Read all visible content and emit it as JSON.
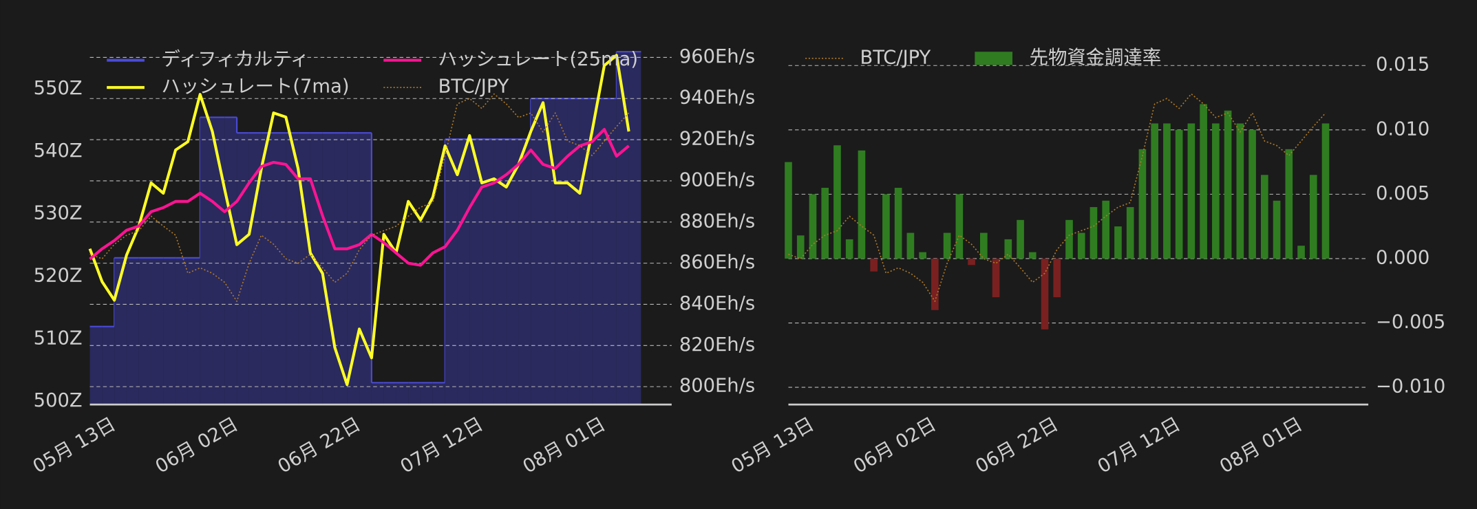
{
  "chart_data": [
    {
      "type": "line",
      "x": [
        "05-09",
        "05-11",
        "05-13",
        "05-15",
        "05-17",
        "05-19",
        "05-21",
        "05-23",
        "05-25",
        "05-27",
        "05-29",
        "05-31",
        "06-02",
        "06-04",
        "06-06",
        "06-08",
        "06-10",
        "06-12",
        "06-14",
        "06-16",
        "06-18",
        "06-20",
        "06-22",
        "06-24",
        "06-26",
        "06-28",
        "06-30",
        "07-02",
        "07-04",
        "07-06",
        "07-08",
        "07-10",
        "07-12",
        "07-14",
        "07-16",
        "07-18",
        "07-20",
        "07-22",
        "07-24",
        "07-26",
        "07-28",
        "07-30",
        "08-01",
        "08-03",
        "08-05"
      ],
      "xlim": [
        "05-09",
        "08-12"
      ],
      "xticks": [
        {
          "value": "05-13",
          "label": "05月 13日"
        },
        {
          "value": "06-02",
          "label": "06月 02日"
        },
        {
          "value": "06-22",
          "label": "06月 22日"
        },
        {
          "value": "07-12",
          "label": "07月 12日"
        },
        {
          "value": "08-01",
          "label": "08月 01日"
        }
      ],
      "ylim": [
        499.5,
        557.5
      ],
      "yticks": [
        {
          "value": 500,
          "label": "500Z"
        },
        {
          "value": 510,
          "label": "510Z"
        },
        {
          "value": 520,
          "label": "520Z"
        },
        {
          "value": 530,
          "label": "530Z"
        },
        {
          "value": 540,
          "label": "540Z"
        },
        {
          "value": 550,
          "label": "550Z"
        }
      ],
      "y2lim": [
        791.3,
        967.3
      ],
      "y2ticks": [
        {
          "value": 800,
          "label": "800Eh/s"
        },
        {
          "value": 820,
          "label": "820Eh/s"
        },
        {
          "value": 840,
          "label": "840Eh/s"
        },
        {
          "value": 860,
          "label": "860Eh/s"
        },
        {
          "value": 880,
          "label": "880Eh/s"
        },
        {
          "value": 900,
          "label": "900Eh/s"
        },
        {
          "value": 920,
          "label": "920Eh/s"
        },
        {
          "value": 940,
          "label": "940Eh/s"
        },
        {
          "value": 960,
          "label": "960Eh/s"
        }
      ],
      "y3lim": [
        14000000,
        18000000
      ],
      "grid": "y2",
      "series": [
        {
          "name": "ディフィカルティ",
          "color": "#4b4bd8",
          "fill": "#2a2a5e",
          "style": "step-area",
          "values": [
            512,
            512,
            523,
            523,
            523,
            523,
            523,
            523,
            523,
            545.5,
            545.5,
            545.5,
            543,
            543,
            543,
            543,
            543,
            543,
            543,
            543,
            543,
            543,
            543,
            503,
            503,
            503,
            503,
            503,
            503,
            542,
            542,
            542,
            542,
            542,
            542,
            542,
            548.5,
            548.5,
            548.5,
            548.5,
            548.5,
            548.5,
            548.5,
            556,
            556
          ]
        },
        {
          "name": "ハッシュレート(7ma)",
          "color": "#ffff26",
          "axis": "y2",
          "values": [
            867,
            851,
            842,
            864,
            878,
            899,
            894,
            915,
            919,
            942,
            924,
            896,
            869,
            874,
            906,
            933,
            931,
            906,
            865,
            855,
            819,
            801,
            828,
            814,
            874,
            865,
            890,
            881,
            892,
            917,
            903,
            922,
            899,
            901,
            897,
            908,
            924,
            938,
            899,
            899,
            894,
            924,
            956,
            961,
            924
          ]
        },
        {
          "name": "ハッシュレート(25ma)",
          "color": "#ff1493",
          "axis": "y2",
          "values": [
            862,
            867,
            871,
            876,
            878,
            885,
            887,
            890,
            890,
            894,
            890,
            885,
            890,
            899,
            907,
            909,
            908,
            901,
            901,
            883,
            867,
            867,
            869,
            874,
            870,
            865,
            860,
            859,
            865,
            868,
            876,
            887,
            897,
            899,
            903,
            908,
            915,
            908,
            906,
            912,
            917,
            919,
            925,
            912,
            917
          ]
        },
        {
          "name": "BTC/JPY",
          "color": "#b07a28",
          "axis": "y3",
          "style": "dotted",
          "values": [
            15660000,
            15610000,
            15770000,
            15870000,
            15920000,
            16080000,
            15970000,
            15870000,
            15450000,
            15510000,
            15450000,
            15350000,
            15140000,
            15560000,
            15870000,
            15770000,
            15610000,
            15560000,
            15660000,
            15510000,
            15350000,
            15450000,
            15710000,
            15870000,
            15920000,
            15970000,
            16080000,
            16180000,
            16230000,
            16750000,
            17320000,
            17380000,
            17270000,
            17430000,
            17320000,
            17170000,
            17220000,
            17010000,
            17220000,
            16910000,
            16860000,
            16750000,
            16910000,
            17070000,
            17220000
          ]
        }
      ]
    },
    {
      "type": "bar",
      "x": [
        "05-09",
        "05-11",
        "05-13",
        "05-15",
        "05-17",
        "05-19",
        "05-21",
        "05-23",
        "05-25",
        "05-27",
        "05-29",
        "05-31",
        "06-02",
        "06-04",
        "06-06",
        "06-08",
        "06-10",
        "06-12",
        "06-14",
        "06-16",
        "06-18",
        "06-20",
        "06-22",
        "06-24",
        "06-26",
        "06-28",
        "06-30",
        "07-02",
        "07-04",
        "07-06",
        "07-08",
        "07-10",
        "07-12",
        "07-14",
        "07-16",
        "07-18",
        "07-20",
        "07-22",
        "07-24",
        "07-26",
        "07-28",
        "07-30",
        "08-01",
        "08-03",
        "08-05"
      ],
      "xlim": [
        "05-09",
        "08-12"
      ],
      "xticks": [
        {
          "value": "05-13",
          "label": "05月 13日"
        },
        {
          "value": "06-02",
          "label": "06月 02日"
        },
        {
          "value": "06-22",
          "label": "06月 22日"
        },
        {
          "value": "07-12",
          "label": "07月 12日"
        },
        {
          "value": "08-01",
          "label": "08月 01日"
        }
      ],
      "ylim": [
        -0.01134,
        0.0168
      ],
      "yticks": [
        {
          "value": -0.01,
          "label": "−0.010"
        },
        {
          "value": -0.005,
          "label": "−0.005"
        },
        {
          "value": 0,
          "label": "0.000"
        },
        {
          "value": 0.005,
          "label": "0.005"
        },
        {
          "value": 0.01,
          "label": "0.010"
        },
        {
          "value": 0.015,
          "label": "0.015"
        }
      ],
      "y_axis_side": "right",
      "y3lim": [
        14000000,
        18000000
      ],
      "grid": "y",
      "series": [
        {
          "name": "BTC/JPY",
          "type": "line",
          "color": "#b07a28",
          "axis": "y3",
          "style": "dotted",
          "values": [
            15660000,
            15610000,
            15770000,
            15870000,
            15920000,
            16080000,
            15970000,
            15870000,
            15450000,
            15510000,
            15450000,
            15350000,
            15140000,
            15560000,
            15870000,
            15770000,
            15610000,
            15560000,
            15660000,
            15510000,
            15350000,
            15450000,
            15710000,
            15870000,
            15920000,
            15970000,
            16080000,
            16180000,
            16230000,
            16750000,
            17320000,
            17380000,
            17270000,
            17430000,
            17320000,
            17170000,
            17220000,
            17010000,
            17220000,
            16910000,
            16860000,
            16750000,
            16910000,
            17070000,
            17220000
          ]
        },
        {
          "name": "先物資金調達率",
          "color": "#2f7d20",
          "negative_color": "#7a2020",
          "values": [
            0.0075,
            0.0018,
            0.005,
            0.0055,
            0.0088,
            0.0015,
            0.0084,
            -0.001,
            0.005,
            0.0055,
            0.002,
            0.0005,
            -0.004,
            0.002,
            0.005,
            -0.0005,
            0.002,
            -0.003,
            0.0015,
            0.003,
            0.0005,
            -0.0055,
            -0.003,
            0.003,
            0.002,
            0.004,
            0.0045,
            0.0025,
            0.004,
            0.0085,
            0.0105,
            0.0105,
            0.01,
            0.0105,
            0.012,
            0.0105,
            0.0115,
            0.0105,
            0.01,
            0.0065,
            0.0045,
            0.0085,
            0.001,
            0.0065,
            0.0105
          ]
        }
      ]
    }
  ]
}
